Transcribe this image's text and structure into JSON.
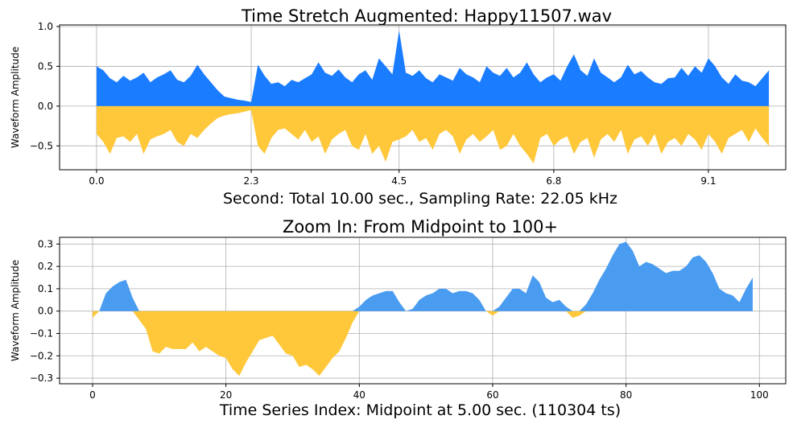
{
  "colors": {
    "positive_top": "#1a7cff",
    "negative_top": "#ffc83a",
    "positive_zoom": "#4a9cf0",
    "negative_zoom": "#ffc83a"
  },
  "chart_data": [
    {
      "type": "area",
      "title": "Time Stretch Augmented: Happy11507.wav",
      "xlabel": "Second: Total 10.00 sec., Sampling Rate: 22.05 kHz",
      "ylabel": "Waveform Amplitude",
      "xlim": [
        -0.55,
        10.25
      ],
      "ylim": [
        -0.8,
        1.02
      ],
      "x_ticks": [
        0.0,
        2.3,
        4.5,
        6.8,
        9.1
      ],
      "x_tick_labels": [
        "0.0",
        "2.3",
        "4.5",
        "6.8",
        "9.1"
      ],
      "y_ticks": [
        -0.5,
        0.0,
        0.5,
        1.0
      ],
      "y_tick_labels": [
        "−0.5",
        "0.0",
        "0.5",
        "1.0"
      ],
      "grid": true,
      "series": [
        {
          "x": [
            0.0,
            0.1,
            0.2,
            0.3,
            0.4,
            0.5,
            0.6,
            0.7,
            0.8,
            0.9,
            1.0,
            1.1,
            1.2,
            1.3,
            1.4,
            1.5,
            1.6,
            1.7,
            1.8,
            1.9,
            2.0,
            2.1,
            2.2,
            2.3,
            2.4,
            2.5,
            2.6,
            2.7,
            2.8,
            2.9,
            3.0,
            3.1,
            3.2,
            3.3,
            3.4,
            3.5,
            3.6,
            3.7,
            3.8,
            3.9,
            4.0,
            4.1,
            4.2,
            4.3,
            4.4,
            4.5,
            4.6,
            4.7,
            4.8,
            4.9,
            5.0,
            5.1,
            5.2,
            5.3,
            5.4,
            5.5,
            5.6,
            5.7,
            5.8,
            5.9,
            6.0,
            6.1,
            6.2,
            6.3,
            6.4,
            6.5,
            6.6,
            6.7,
            6.8,
            6.9,
            7.0,
            7.1,
            7.2,
            7.3,
            7.4,
            7.5,
            7.6,
            7.7,
            7.8,
            7.9,
            8.0,
            8.1,
            8.2,
            8.3,
            8.4,
            8.5,
            8.6,
            8.7,
            8.8,
            8.9,
            9.0,
            9.1,
            9.2,
            9.3,
            9.4,
            9.5,
            9.6,
            9.7,
            9.8,
            9.9,
            10.0
          ],
          "upper": [
            0.5,
            0.45,
            0.35,
            0.3,
            0.38,
            0.32,
            0.36,
            0.42,
            0.3,
            0.36,
            0.4,
            0.45,
            0.33,
            0.3,
            0.38,
            0.52,
            0.4,
            0.3,
            0.2,
            0.12,
            0.1,
            0.08,
            0.07,
            0.05,
            0.52,
            0.38,
            0.28,
            0.3,
            0.25,
            0.33,
            0.3,
            0.35,
            0.4,
            0.55,
            0.42,
            0.38,
            0.46,
            0.36,
            0.3,
            0.4,
            0.45,
            0.33,
            0.6,
            0.5,
            0.4,
            0.95,
            0.42,
            0.38,
            0.45,
            0.35,
            0.3,
            0.4,
            0.36,
            0.32,
            0.48,
            0.4,
            0.36,
            0.3,
            0.5,
            0.42,
            0.38,
            0.48,
            0.36,
            0.42,
            0.55,
            0.4,
            0.3,
            0.36,
            0.4,
            0.32,
            0.5,
            0.65,
            0.45,
            0.38,
            0.6,
            0.42,
            0.36,
            0.3,
            0.36,
            0.52,
            0.4,
            0.44,
            0.36,
            0.3,
            0.28,
            0.35,
            0.36,
            0.48,
            0.38,
            0.5,
            0.42,
            0.6,
            0.5,
            0.36,
            0.28,
            0.4,
            0.32,
            0.3,
            0.25,
            0.35,
            0.45
          ],
          "lower": [
            -0.35,
            -0.45,
            -0.6,
            -0.4,
            -0.38,
            -0.45,
            -0.35,
            -0.6,
            -0.42,
            -0.38,
            -0.35,
            -0.3,
            -0.45,
            -0.5,
            -0.35,
            -0.4,
            -0.3,
            -0.22,
            -0.15,
            -0.12,
            -0.1,
            -0.09,
            -0.07,
            -0.05,
            -0.5,
            -0.6,
            -0.4,
            -0.3,
            -0.28,
            -0.35,
            -0.42,
            -0.3,
            -0.45,
            -0.38,
            -0.6,
            -0.42,
            -0.35,
            -0.3,
            -0.5,
            -0.55,
            -0.35,
            -0.6,
            -0.5,
            -0.7,
            -0.45,
            -0.42,
            -0.38,
            -0.3,
            -0.45,
            -0.4,
            -0.55,
            -0.35,
            -0.3,
            -0.38,
            -0.6,
            -0.42,
            -0.35,
            -0.45,
            -0.38,
            -0.3,
            -0.55,
            -0.5,
            -0.35,
            -0.5,
            -0.6,
            -0.72,
            -0.4,
            -0.35,
            -0.5,
            -0.42,
            -0.38,
            -0.6,
            -0.45,
            -0.4,
            -0.65,
            -0.42,
            -0.35,
            -0.45,
            -0.3,
            -0.6,
            -0.42,
            -0.38,
            -0.5,
            -0.35,
            -0.6,
            -0.45,
            -0.4,
            -0.5,
            -0.35,
            -0.42,
            -0.55,
            -0.35,
            -0.45,
            -0.6,
            -0.4,
            -0.35,
            -0.3,
            -0.45,
            -0.28,
            -0.4,
            -0.5
          ]
        }
      ]
    },
    {
      "type": "area",
      "title": "Zoom In: From Midpoint to 100+",
      "xlabel": "Time Series Index: Midpoint at 5.00 sec. (110304 ts)",
      "ylabel": "Waveform Amplitude",
      "xlim": [
        -4.95,
        103.95
      ],
      "ylim": [
        -0.325,
        0.33
      ],
      "x_ticks": [
        0,
        20,
        40,
        60,
        80,
        100
      ],
      "x_tick_labels": [
        "0",
        "20",
        "40",
        "60",
        "80",
        "100"
      ],
      "y_ticks": [
        -0.3,
        -0.2,
        -0.1,
        0.0,
        0.1,
        0.2,
        0.3
      ],
      "y_tick_labels": [
        "−0.3",
        "−0.2",
        "−0.1",
        "0.0",
        "0.1",
        "0.2",
        "0.3"
      ],
      "grid": true,
      "series": [
        {
          "x": [
            0,
            1,
            2,
            3,
            4,
            5,
            6,
            7,
            8,
            9,
            10,
            11,
            12,
            13,
            14,
            15,
            16,
            17,
            18,
            19,
            20,
            21,
            22,
            23,
            24,
            25,
            26,
            27,
            28,
            29,
            30,
            31,
            32,
            33,
            34,
            35,
            36,
            37,
            38,
            39,
            40,
            41,
            42,
            43,
            44,
            45,
            46,
            47,
            48,
            49,
            50,
            51,
            52,
            53,
            54,
            55,
            56,
            57,
            58,
            59,
            60,
            61,
            62,
            63,
            64,
            65,
            66,
            67,
            68,
            69,
            70,
            71,
            72,
            73,
            74,
            75,
            76,
            77,
            78,
            79,
            80,
            81,
            82,
            83,
            84,
            85,
            86,
            87,
            88,
            89,
            90,
            91,
            92,
            93,
            94,
            95,
            96,
            97,
            98,
            99
          ],
          "y": [
            -0.03,
            0.0,
            0.08,
            0.11,
            0.13,
            0.14,
            0.06,
            -0.04,
            -0.08,
            -0.18,
            -0.19,
            -0.16,
            -0.17,
            -0.17,
            -0.17,
            -0.14,
            -0.18,
            -0.16,
            -0.18,
            -0.2,
            -0.21,
            -0.26,
            -0.29,
            -0.23,
            -0.18,
            -0.13,
            -0.12,
            -0.11,
            -0.15,
            -0.19,
            -0.2,
            -0.25,
            -0.24,
            -0.26,
            -0.29,
            -0.25,
            -0.21,
            -0.18,
            -0.12,
            -0.05,
            0.02,
            0.05,
            0.07,
            0.08,
            0.09,
            0.09,
            0.04,
            0.0,
            0.01,
            0.05,
            0.07,
            0.08,
            0.1,
            0.1,
            0.08,
            0.09,
            0.09,
            0.08,
            0.05,
            0.0,
            -0.02,
            0.02,
            0.06,
            0.1,
            0.1,
            0.08,
            0.16,
            0.13,
            0.06,
            0.04,
            0.05,
            0.02,
            -0.03,
            -0.02,
            0.03,
            0.08,
            0.14,
            0.19,
            0.25,
            0.3,
            0.31,
            0.27,
            0.2,
            0.22,
            0.21,
            0.19,
            0.17,
            0.18,
            0.18,
            0.2,
            0.24,
            0.25,
            0.22,
            0.17,
            0.1,
            0.08,
            0.07,
            0.04,
            0.1,
            0.15
          ]
        }
      ]
    }
  ]
}
